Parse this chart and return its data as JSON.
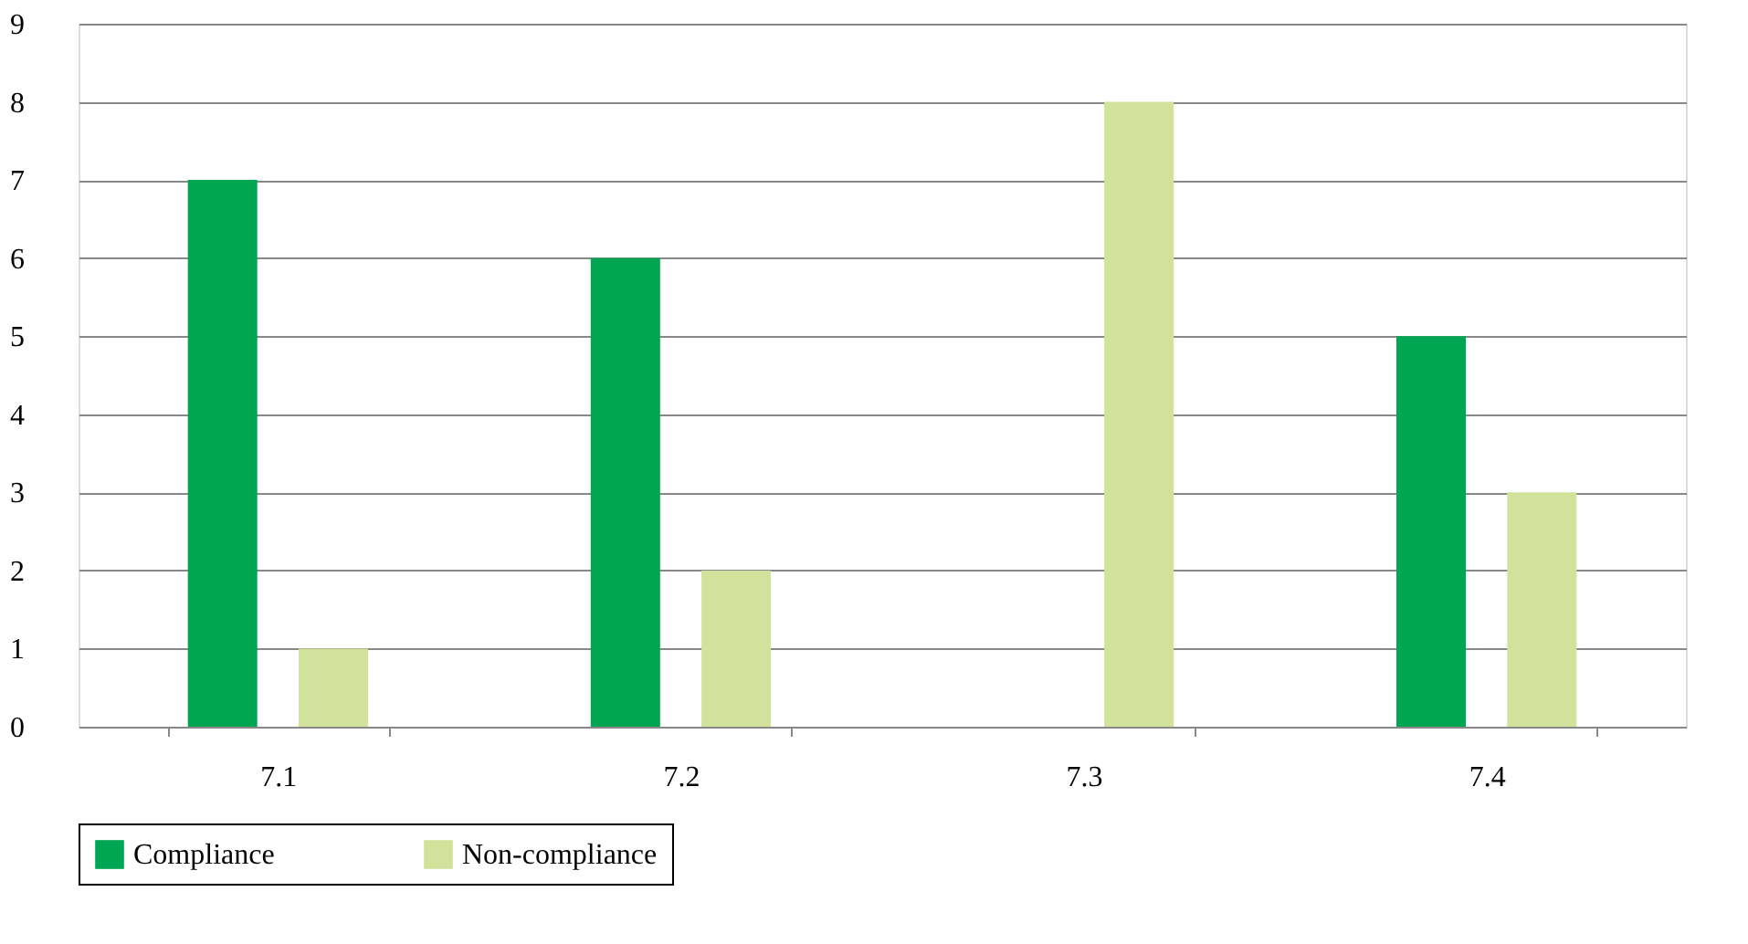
{
  "chart_data": {
    "type": "bar",
    "categories": [
      "7.1",
      "7.2",
      "7.3",
      "7.4"
    ],
    "series": [
      {
        "name": "Compliance",
        "color": "#00a651",
        "values": [
          7,
          6,
          0,
          5
        ]
      },
      {
        "name": "Non-compliance",
        "color": "#d3e29b",
        "values": [
          1,
          2,
          8,
          3
        ]
      }
    ],
    "ylim": [
      0,
      9
    ],
    "yticks": [
      0,
      1,
      2,
      3,
      4,
      5,
      6,
      7,
      8,
      9
    ],
    "grid": "y",
    "legend": "bottom"
  }
}
